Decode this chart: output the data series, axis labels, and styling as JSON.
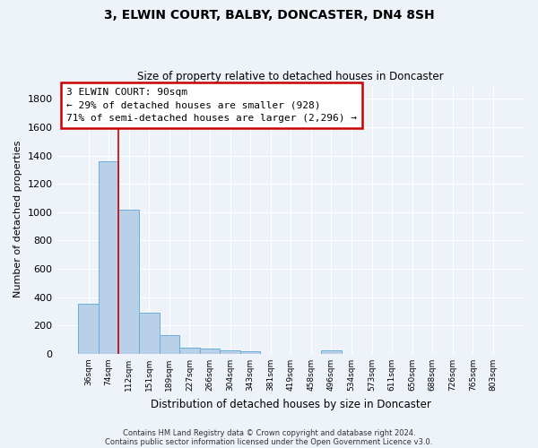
{
  "title1": "3, ELWIN COURT, BALBY, DONCASTER, DN4 8SH",
  "title2": "Size of property relative to detached houses in Doncaster",
  "xlabel": "Distribution of detached houses by size in Doncaster",
  "ylabel": "Number of detached properties",
  "categories": [
    "36sqm",
    "74sqm",
    "112sqm",
    "151sqm",
    "189sqm",
    "227sqm",
    "266sqm",
    "304sqm",
    "343sqm",
    "381sqm",
    "419sqm",
    "458sqm",
    "496sqm",
    "534sqm",
    "573sqm",
    "611sqm",
    "650sqm",
    "688sqm",
    "726sqm",
    "765sqm",
    "803sqm"
  ],
  "values": [
    355,
    1360,
    1020,
    290,
    130,
    45,
    35,
    25,
    20,
    0,
    0,
    0,
    25,
    0,
    0,
    0,
    0,
    0,
    0,
    0,
    0
  ],
  "bar_color": "#b8d0e8",
  "bar_edgecolor": "#6aaed6",
  "vline_color": "#cc0000",
  "annotation_text": "3 ELWIN COURT: 90sqm\n← 29% of detached houses are smaller (928)\n71% of semi-detached houses are larger (2,296) →",
  "annotation_bbox_edgecolor": "#cc0000",
  "annotation_bbox_facecolor": "white",
  "ylim": [
    0,
    1900
  ],
  "yticks": [
    0,
    200,
    400,
    600,
    800,
    1000,
    1200,
    1400,
    1600,
    1800
  ],
  "footnote1": "Contains HM Land Registry data © Crown copyright and database right 2024.",
  "footnote2": "Contains public sector information licensed under the Open Government Licence v3.0.",
  "bg_color": "#eef2f9",
  "grid_color": "white"
}
